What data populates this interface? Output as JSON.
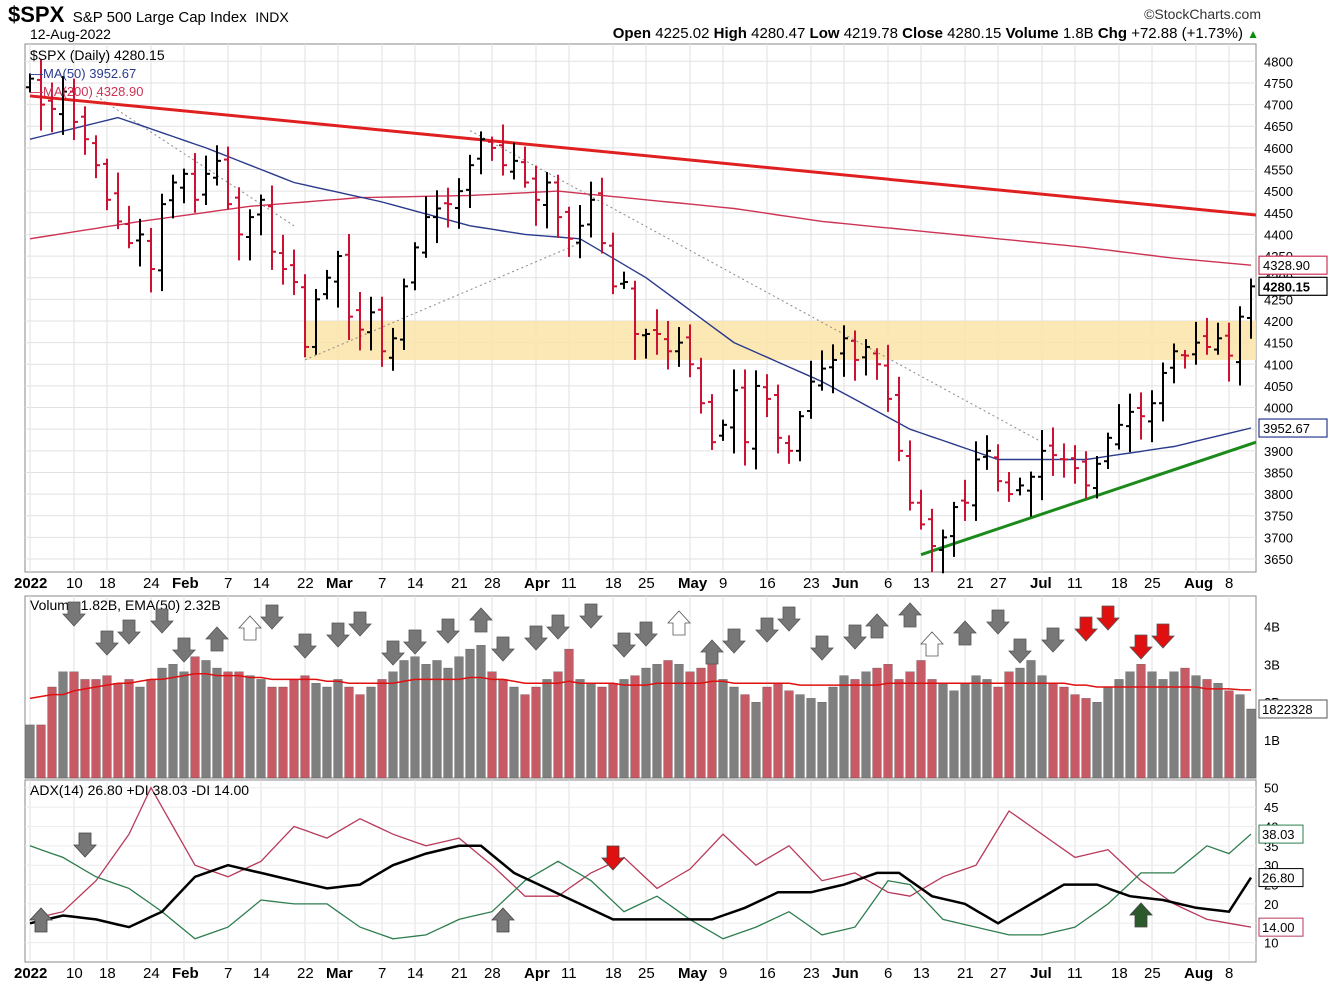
{
  "header": {
    "symbol": "$SPX",
    "name": "S&P 500 Large Cap Index",
    "exchange": "INDX",
    "date": "12-Aug-2022",
    "brand": "©StockCharts.com",
    "open_label": "Open",
    "open": "4225.02",
    "high_label": "High",
    "high": "4280.47",
    "low_label": "Low",
    "low": "4219.78",
    "close_label": "Close",
    "close": "4280.15",
    "volume_label": "Volume",
    "volume": "1.8B",
    "chg_label": "Chg",
    "chg": "+72.88 (+1.73%)",
    "chg_arrow": "▲"
  },
  "colors": {
    "up_bar": "#000000",
    "down_bar": "#cc1133",
    "ma50": "#2a3a8c",
    "ma200": "#cc3355",
    "resistance": "#e02020",
    "support": "#1a8a1a",
    "zone": "#fce4a8",
    "vol_down": "#c85a66",
    "vol_up": "#7f7f7f",
    "adx": "#000000",
    "plus_di": "#2e7d4f",
    "minus_di": "#b83a5a"
  },
  "chart_data": [
    {
      "type": "ohlc",
      "title": "$SPX (Daily) 4280.15",
      "ylim": [
        3620,
        4840
      ],
      "y_ticks": [
        3650,
        3700,
        3750,
        3800,
        3850,
        3900,
        3950,
        4000,
        4050,
        4100,
        4150,
        4200,
        4250,
        4300,
        4350,
        4400,
        4450,
        4500,
        4550,
        4600,
        4650,
        4700,
        4750,
        4800
      ],
      "x_labels": [
        "2022",
        "10",
        "18",
        "24",
        "Feb",
        "7",
        "14",
        "22",
        "Mar",
        "7",
        "14",
        "21",
        "28",
        "Apr",
        "11",
        "18",
        "25",
        "May",
        "9",
        "16",
        "23",
        "Jun",
        "6",
        "13",
        "21",
        "27",
        "Jul",
        "11",
        "18",
        "25",
        "Aug",
        "8"
      ],
      "legend": [
        {
          "name": "$SPX (Daily) 4280.15",
          "icon": "ohlc-icon"
        },
        {
          "name": "MA(50) 3952.67",
          "color": "#2a3a8c"
        },
        {
          "name": "MA(200) 4328.90",
          "color": "#cc3355"
        }
      ],
      "last_labels": {
        "ma200": "4328.90",
        "close": "4280.15",
        "ma50": "3952.67"
      },
      "closes": [
        4760,
        4700,
        4690,
        4730,
        4660,
        4620,
        4560,
        4480,
        4430,
        4380,
        4400,
        4320,
        4470,
        4520,
        4540,
        4480,
        4540,
        4570,
        4470,
        4400,
        4440,
        4480,
        4360,
        4320,
        4290,
        4140,
        4250,
        4300,
        4350,
        4210,
        4180,
        4220,
        4130,
        4160,
        4280,
        4370,
        4440,
        4460,
        4470,
        4500,
        4560,
        4620,
        4600,
        4560,
        4570,
        4520,
        4480,
        4520,
        4440,
        4390,
        4420,
        4480,
        4380,
        4280,
        4290,
        4170,
        4170,
        4170,
        4130,
        4150,
        4100,
        4010,
        3920,
        3960,
        4040,
        3920,
        4050,
        4020,
        3930,
        3900,
        3980,
        4060,
        4090,
        4110,
        4160,
        4110,
        4140,
        4100,
        4020,
        3900,
        3780,
        3730,
        3680,
        3700,
        3770,
        3780,
        3880,
        3900,
        3830,
        3800,
        3820,
        3840,
        3900,
        3890,
        3880,
        3860,
        3820,
        3870,
        3930,
        3960,
        3990,
        3980,
        4010,
        4080,
        4130,
        4120,
        4150,
        4140,
        4160,
        4120,
        4210,
        4280
      ],
      "series": [
        {
          "name": "MA(50)",
          "anchors": [
            [
              0,
              4620
            ],
            [
              8,
              4670
            ],
            [
              16,
              4600
            ],
            [
              24,
              4520
            ],
            [
              32,
              4475
            ],
            [
              40,
              4420
            ],
            [
              45,
              4400
            ],
            [
              50,
              4390
            ],
            [
              56,
              4300
            ],
            [
              64,
              4150
            ],
            [
              72,
              4060
            ],
            [
              80,
              3950
            ],
            [
              88,
              3880
            ],
            [
              96,
              3880
            ],
            [
              104,
              3910
            ],
            [
              111,
              3952.67
            ]
          ]
        },
        {
          "name": "MA(200)",
          "anchors": [
            [
              0,
              4390
            ],
            [
              10,
              4430
            ],
            [
              20,
              4465
            ],
            [
              30,
              4485
            ],
            [
              40,
              4490
            ],
            [
              48,
              4500
            ],
            [
              56,
              4480
            ],
            [
              64,
              4460
            ],
            [
              72,
              4430
            ],
            [
              80,
              4410
            ],
            [
              88,
              4390
            ],
            [
              96,
              4370
            ],
            [
              104,
              4345
            ],
            [
              111,
              4328.9
            ]
          ]
        }
      ],
      "annotations": [
        {
          "name": "resistance trendline",
          "from": [
            0,
            4720
          ],
          "to": [
            111,
            4445
          ]
        },
        {
          "name": "support trendline",
          "from": [
            81,
            3660
          ],
          "to": [
            111,
            3920
          ]
        },
        {
          "name": "support/resistance zone",
          "ymin": 4110,
          "ymax": 4200
        }
      ]
    },
    {
      "type": "bar",
      "title": "Volume 1.82B, EMA(50) 2.32B",
      "legend": "Volume 1.82B, EMA(50) 2.32B",
      "y_ticks": [
        "1B",
        "2B",
        "3B",
        "4B"
      ],
      "ylim": [
        0,
        4.8
      ],
      "last_label": "1822328",
      "values": [
        1.4,
        1.4,
        2.4,
        2.8,
        2.8,
        2.6,
        2.6,
        2.7,
        2.5,
        2.6,
        2.4,
        2.6,
        2.9,
        3.0,
        2.8,
        3.2,
        3.1,
        2.9,
        2.8,
        2.8,
        2.7,
        2.6,
        2.4,
        2.4,
        2.6,
        2.7,
        2.5,
        2.4,
        2.6,
        2.4,
        2.2,
        2.4,
        2.6,
        2.8,
        3.1,
        3.2,
        3.0,
        3.1,
        2.9,
        3.2,
        3.4,
        3.5,
        2.8,
        2.6,
        2.4,
        2.2,
        2.4,
        2.6,
        2.8,
        3.4,
        2.6,
        2.5,
        2.4,
        2.5,
        2.6,
        2.7,
        2.9,
        3.0,
        3.1,
        3.0,
        2.8,
        2.9,
        3.0,
        2.6,
        2.4,
        2.2,
        2.0,
        2.4,
        2.5,
        2.3,
        2.2,
        2.1,
        2.0,
        2.4,
        2.7,
        2.6,
        2.8,
        2.9,
        3.0,
        2.6,
        2.8,
        3.1,
        2.6,
        2.5,
        2.3,
        2.5,
        2.7,
        2.6,
        2.4,
        2.8,
        2.9,
        3.1,
        2.7,
        2.5,
        2.4,
        2.2,
        2.1,
        2.0,
        2.4,
        2.6,
        2.8,
        3.0,
        2.8,
        2.6,
        2.8,
        2.9,
        2.7,
        2.6,
        2.5,
        2.3,
        2.2,
        1.82
      ],
      "ema50": [
        2.1,
        2.15,
        2.2,
        2.2,
        2.3,
        2.35,
        2.4,
        2.45,
        2.5,
        2.5,
        2.55,
        2.6,
        2.6,
        2.65,
        2.7,
        2.75,
        2.75,
        2.7,
        2.7,
        2.7,
        2.65,
        2.65,
        2.6,
        2.6,
        2.6,
        2.6,
        2.6,
        2.55,
        2.55,
        2.5,
        2.5,
        2.5,
        2.5,
        2.5,
        2.55,
        2.6,
        2.6,
        2.6,
        2.6,
        2.6,
        2.65,
        2.65,
        2.6,
        2.6,
        2.55,
        2.5,
        2.5,
        2.5,
        2.5,
        2.55,
        2.5,
        2.5,
        2.5,
        2.5,
        2.45,
        2.45,
        2.45,
        2.5,
        2.5,
        2.5,
        2.5,
        2.5,
        2.55,
        2.55,
        2.5,
        2.5,
        2.5,
        2.5,
        2.5,
        2.5,
        2.45,
        2.45,
        2.45,
        2.45,
        2.45,
        2.45,
        2.45,
        2.45,
        2.5,
        2.5,
        2.5,
        2.5,
        2.5,
        2.5,
        2.5,
        2.5,
        2.5,
        2.5,
        2.5,
        2.5,
        2.5,
        2.5,
        2.5,
        2.5,
        2.5,
        2.45,
        2.45,
        2.4,
        2.4,
        2.4,
        2.4,
        2.4,
        2.4,
        2.4,
        2.4,
        2.4,
        2.4,
        2.35,
        2.35,
        2.35,
        2.33,
        2.32
      ]
    },
    {
      "type": "line",
      "title": "ADX(14) 26.80 +DI 38.03 -DI 14.00",
      "ylim": [
        5,
        52
      ],
      "y_ticks": [
        10,
        15,
        20,
        25,
        30,
        35,
        40,
        45,
        50
      ],
      "last_labels": {
        "plus_di": "38.03",
        "adx": "26.80",
        "minus_di": "14.00"
      },
      "legend": [
        {
          "name": "ADX(14) 26.80",
          "color": "#000000"
        },
        {
          "name": "+DI 38.03",
          "color": "#2e7d4f"
        },
        {
          "name": "-DI 14.00",
          "color": "#b83a5a"
        }
      ],
      "series": [
        {
          "name": "ADX(14)",
          "anchors": [
            [
              0,
              15
            ],
            [
              3,
              17
            ],
            [
              6,
              16
            ],
            [
              9,
              14
            ],
            [
              12,
              18
            ],
            [
              15,
              27
            ],
            [
              18,
              30
            ],
            [
              21,
              28
            ],
            [
              24,
              26
            ],
            [
              27,
              24
            ],
            [
              30,
              25
            ],
            [
              33,
              30
            ],
            [
              36,
              33
            ],
            [
              39,
              35
            ],
            [
              41,
              35
            ],
            [
              44,
              28
            ],
            [
              47,
              24
            ],
            [
              50,
              20
            ],
            [
              53,
              16
            ],
            [
              56,
              16
            ],
            [
              59,
              16
            ],
            [
              62,
              16
            ],
            [
              65,
              19
            ],
            [
              68,
              23
            ],
            [
              71,
              23
            ],
            [
              74,
              25
            ],
            [
              77,
              28
            ],
            [
              79,
              28
            ],
            [
              82,
              22
            ],
            [
              85,
              20
            ],
            [
              88,
              15
            ],
            [
              91,
              20
            ],
            [
              94,
              25
            ],
            [
              97,
              25
            ],
            [
              100,
              22
            ],
            [
              103,
              21
            ],
            [
              106,
              19
            ],
            [
              109,
              18
            ],
            [
              111,
              26.8
            ]
          ]
        },
        {
          "name": "+DI",
          "anchors": [
            [
              0,
              35
            ],
            [
              3,
              32
            ],
            [
              6,
              27
            ],
            [
              9,
              24
            ],
            [
              12,
              18
            ],
            [
              15,
              11
            ],
            [
              18,
              14
            ],
            [
              21,
              21
            ],
            [
              24,
              20
            ],
            [
              27,
              20
            ],
            [
              30,
              14
            ],
            [
              33,
              11
            ],
            [
              36,
              12
            ],
            [
              39,
              16
            ],
            [
              42,
              18
            ],
            [
              45,
              26
            ],
            [
              48,
              31
            ],
            [
              51,
              26
            ],
            [
              54,
              18
            ],
            [
              57,
              22
            ],
            [
              60,
              16
            ],
            [
              63,
              11
            ],
            [
              66,
              14
            ],
            [
              69,
              18
            ],
            [
              72,
              12
            ],
            [
              75,
              14
            ],
            [
              78,
              26
            ],
            [
              80,
              25
            ],
            [
              83,
              16
            ],
            [
              86,
              14
            ],
            [
              89,
              12
            ],
            [
              92,
              12
            ],
            [
              95,
              14
            ],
            [
              98,
              20
            ],
            [
              101,
              28
            ],
            [
              104,
              28
            ],
            [
              107,
              35
            ],
            [
              109,
              33
            ],
            [
              111,
              38.03
            ]
          ]
        },
        {
          "name": "-DI",
          "anchors": [
            [
              0,
              16
            ],
            [
              3,
              18
            ],
            [
              6,
              26
            ],
            [
              9,
              38
            ],
            [
              11,
              50
            ],
            [
              13,
              40
            ],
            [
              15,
              30
            ],
            [
              18,
              27
            ],
            [
              21,
              31
            ],
            [
              24,
              40
            ],
            [
              27,
              37
            ],
            [
              30,
              42
            ],
            [
              33,
              38
            ],
            [
              36,
              35
            ],
            [
              39,
              37
            ],
            [
              42,
              30
            ],
            [
              45,
              22
            ],
            [
              48,
              22
            ],
            [
              51,
              28
            ],
            [
              54,
              32
            ],
            [
              57,
              24
            ],
            [
              60,
              29
            ],
            [
              63,
              38
            ],
            [
              66,
              30
            ],
            [
              69,
              35
            ],
            [
              72,
              26
            ],
            [
              75,
              28
            ],
            [
              78,
              23
            ],
            [
              80,
              22
            ],
            [
              83,
              27
            ],
            [
              86,
              30
            ],
            [
              89,
              44
            ],
            [
              92,
              38
            ],
            [
              95,
              32
            ],
            [
              98,
              34
            ],
            [
              101,
              26
            ],
            [
              104,
              20
            ],
            [
              107,
              16
            ],
            [
              109,
              15
            ],
            [
              111,
              14
            ]
          ]
        }
      ]
    }
  ],
  "signals": {
    "volume_arrows": [
      "down",
      "down",
      "down",
      "down",
      "down",
      "up",
      "up",
      "down",
      "down",
      "down",
      "down",
      "down",
      "down",
      "down",
      "up",
      "down",
      "down",
      "down",
      "down",
      "down",
      "down",
      "up",
      "up",
      "down",
      "down",
      "down",
      "down",
      "down",
      "up",
      "up",
      "up",
      "up",
      "down",
      "down",
      "down",
      "red",
      "red",
      "red",
      "red"
    ],
    "adx_arrows": [
      "up",
      "down",
      "up",
      "red",
      "up-green"
    ]
  }
}
